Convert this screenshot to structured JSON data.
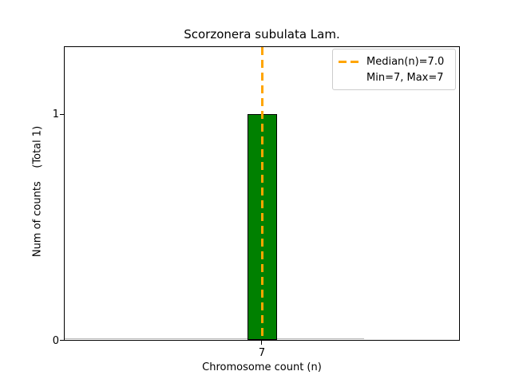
{
  "figure": {
    "title": "Scorzonera subulata Lam.",
    "xlabel": "Chromosome count (n)",
    "ylabel": "Num of counts    (Total 1)",
    "ytick_top": "1",
    "ytick_bottom": "0",
    "xtick": "7",
    "legend": {
      "entries": [
        "Median(n)=7.0",
        "Min=7, Max=7"
      ]
    },
    "colors": {
      "bar_fill": "#008000",
      "bar_edge": "#000000",
      "median_line": "#FFA500",
      "legend_border": "#cccccc",
      "zero_baseline": "#bbbbbb",
      "text": "#000000",
      "background": "#ffffff"
    }
  },
  "chart_data": {
    "type": "bar",
    "title": "Scorzonera subulata Lam.",
    "xlabel": "Chromosome count (n)",
    "ylabel": "Num of counts",
    "ylabel_annotation": "(Total 1)",
    "categories": [
      "7"
    ],
    "values": [
      1
    ],
    "total_counts": 1,
    "median_n": 7.0,
    "min_n": 7,
    "max_n": 7,
    "ylim": [
      0,
      1.3
    ],
    "yticks": [
      0,
      1
    ],
    "xticks": [
      7
    ],
    "grid": false,
    "legend_entries": [
      "Median(n)=7.0",
      "Min=7, Max=7"
    ],
    "legend_position": "upper right",
    "bar_color": "#008000",
    "bar_edge_color": "#000000",
    "median_line": {
      "x": 7.0,
      "style": "dashed",
      "color": "#FFA500",
      "orientation": "vertical"
    }
  }
}
